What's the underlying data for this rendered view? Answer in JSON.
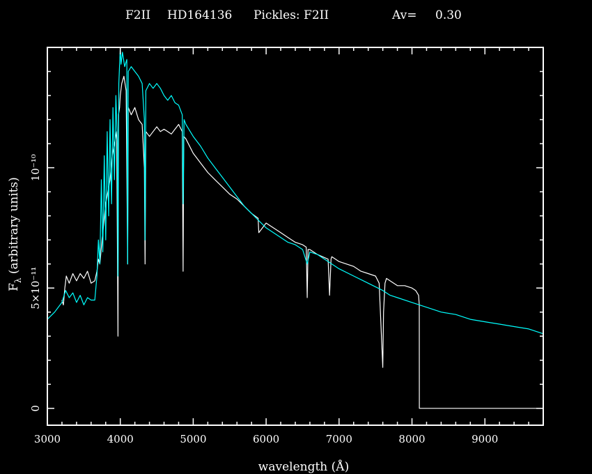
{
  "chart_data": {
    "type": "line",
    "title": {
      "spectral_type": "F2II",
      "star": "HD164136",
      "pickles": "Pickles: F2II",
      "av_label": "Av=",
      "av_value": "0.30"
    },
    "xlabel": "wavelength (Å)",
    "ylabel": {
      "prefix": "F",
      "subscript": "λ",
      "suffix": " (arbitrary units)"
    },
    "xlim": [
      3000,
      9800
    ],
    "ylim": [
      -7e-12,
      1.5e-10
    ],
    "x_ticks": [
      {
        "value": 3000,
        "label": "3000"
      },
      {
        "value": 4000,
        "label": "4000"
      },
      {
        "value": 5000,
        "label": "5000"
      },
      {
        "value": 6000,
        "label": "6000"
      },
      {
        "value": 7000,
        "label": "7000"
      },
      {
        "value": 8000,
        "label": "8000"
      },
      {
        "value": 9000,
        "label": "9000"
      }
    ],
    "y_ticks": [
      {
        "value": 0,
        "label": "0"
      },
      {
        "value": 5e-11,
        "label": "5×10⁻¹¹"
      },
      {
        "value": 1e-10,
        "label": "10⁻¹⁰"
      }
    ],
    "grid": false,
    "colors": {
      "background": "#000000",
      "frame": "#ffffff",
      "observed": "#ffffff",
      "template": "#00ffff"
    },
    "series": [
      {
        "color": "#ffffff",
        "x": [
          3200,
          3220,
          3240,
          3260,
          3300,
          3350,
          3400,
          3450,
          3500,
          3550,
          3600,
          3650,
          3680,
          3700,
          3720,
          3750,
          3780,
          3800,
          3830,
          3860,
          3890,
          3920,
          3950,
          3968,
          3975,
          3990,
          4000,
          4020,
          4050,
          4080,
          4101,
          4110,
          4150,
          4200,
          4250,
          4300,
          4330,
          4340,
          4350,
          4400,
          4450,
          4500,
          4550,
          4600,
          4650,
          4700,
          4750,
          4800,
          4850,
          4861,
          4870,
          4900,
          5000,
          5100,
          5200,
          5300,
          5400,
          5500,
          5600,
          5700,
          5800,
          5890,
          5900,
          6000,
          6100,
          6200,
          6300,
          6400,
          6500,
          6550,
          6563,
          6575,
          6600,
          6700,
          6850,
          6870,
          6890,
          6900,
          7000,
          7100,
          7200,
          7300,
          7400,
          7500,
          7550,
          7600,
          7610,
          7630,
          7650,
          7700,
          7800,
          7900,
          8000,
          8050,
          8090,
          8100,
          8101,
          9000,
          9800
        ],
        "y": [
          4.5e-11,
          4.3e-11,
          5e-11,
          5.5e-11,
          5.2e-11,
          5.6e-11,
          5.3e-11,
          5.6e-11,
          5.4e-11,
          5.7e-11,
          5.2e-11,
          5.3e-11,
          5.7e-11,
          6.2e-11,
          6e-11,
          7e-11,
          7.9e-11,
          8.5e-11,
          9e-11,
          9.5e-11,
          1.05e-10,
          1.1e-10,
          1.15e-10,
          3e-11,
          1.22e-10,
          1.25e-10,
          1.3e-10,
          1.35e-10,
          1.38e-10,
          1.32e-10,
          6e-11,
          1.25e-10,
          1.22e-10,
          1.25e-10,
          1.2e-10,
          1.18e-10,
          1e-10,
          6e-11,
          1.15e-10,
          1.13e-10,
          1.15e-10,
          1.17e-10,
          1.15e-10,
          1.16e-10,
          1.15e-10,
          1.14e-10,
          1.16e-10,
          1.18e-10,
          1.15e-10,
          5.7e-11,
          1.13e-10,
          1.12e-10,
          1.06e-10,
          1.02e-10,
          9.8e-11,
          9.5e-11,
          9.2e-11,
          8.9e-11,
          8.7e-11,
          8.4e-11,
          8.1e-11,
          7.9e-11,
          7.3e-11,
          7.7e-11,
          7.5e-11,
          7.3e-11,
          7.1e-11,
          6.9e-11,
          6.8e-11,
          6.7e-11,
          4.6e-11,
          6.6e-11,
          6.6e-11,
          6.4e-11,
          6.2e-11,
          4.7e-11,
          6.2e-11,
          6.3e-11,
          6.1e-11,
          6e-11,
          5.9e-11,
          5.7e-11,
          5.6e-11,
          5.5e-11,
          5.2e-11,
          1.7e-11,
          4e-11,
          5.2e-11,
          5.4e-11,
          5.3e-11,
          5.1e-11,
          5.1e-11,
          5e-11,
          4.9e-11,
          4.7e-11,
          4.3e-11,
          0,
          0,
          0
        ]
      },
      {
        "color": "#00ffff",
        "x": [
          3000,
          3100,
          3200,
          3250,
          3300,
          3350,
          3400,
          3450,
          3500,
          3550,
          3600,
          3650,
          3680,
          3700,
          3720,
          3740,
          3760,
          3780,
          3800,
          3820,
          3840,
          3860,
          3880,
          3900,
          3920,
          3940,
          3960,
          3968,
          3980,
          4000,
          4010,
          4030,
          4060,
          4090,
          4101,
          4110,
          4150,
          4200,
          4250,
          4300,
          4330,
          4340,
          4350,
          4400,
          4450,
          4500,
          4550,
          4600,
          4650,
          4700,
          4750,
          4800,
          4850,
          4861,
          4875,
          4900,
          5000,
          5100,
          5200,
          5300,
          5400,
          5500,
          5600,
          5700,
          5800,
          5900,
          6000,
          6100,
          6200,
          6300,
          6400,
          6500,
          6563,
          6600,
          6700,
          6800,
          6900,
          7000,
          7200,
          7400,
          7600,
          7700,
          7800,
          8000,
          8200,
          8400,
          8600,
          8800,
          9000,
          9200,
          9400,
          9600,
          9800
        ],
        "y": [
          3.7e-11,
          4e-11,
          4.4e-11,
          4.9e-11,
          4.6e-11,
          4.8e-11,
          4.4e-11,
          4.7e-11,
          4.3e-11,
          4.6e-11,
          4.5e-11,
          4.5e-11,
          5.5e-11,
          7e-11,
          6e-11,
          9.5e-11,
          6.5e-11,
          1.05e-10,
          7e-11,
          1.15e-10,
          8e-11,
          1.2e-10,
          8.5e-11,
          1.25e-10,
          9.5e-11,
          1.3e-10,
          1.1e-10,
          5.5e-11,
          1.35e-10,
          1.5e-10,
          1.43e-10,
          1.48e-10,
          1.42e-10,
          1.45e-10,
          6e-11,
          1.4e-10,
          1.42e-10,
          1.4e-10,
          1.38e-10,
          1.35e-10,
          1.2e-10,
          7e-11,
          1.32e-10,
          1.35e-10,
          1.33e-10,
          1.35e-10,
          1.33e-10,
          1.3e-10,
          1.28e-10,
          1.3e-10,
          1.27e-10,
          1.26e-10,
          1.22e-10,
          8.5e-11,
          1.2e-10,
          1.18e-10,
          1.13e-10,
          1.09e-10,
          1.04e-10,
          1e-10,
          9.6e-11,
          9.2e-11,
          8.8e-11,
          8.4e-11,
          8.1e-11,
          7.8e-11,
          7.5e-11,
          7.3e-11,
          7.1e-11,
          6.9e-11,
          6.8e-11,
          6.6e-11,
          6e-11,
          6.5e-11,
          6.4e-11,
          6.2e-11,
          6e-11,
          5.8e-11,
          5.5e-11,
          5.2e-11,
          4.9e-11,
          4.7e-11,
          4.6e-11,
          4.4e-11,
          4.2e-11,
          4e-11,
          3.9e-11,
          3.7e-11,
          3.6e-11,
          3.5e-11,
          3.4e-11,
          3.3e-11,
          3.1e-11
        ]
      }
    ]
  }
}
